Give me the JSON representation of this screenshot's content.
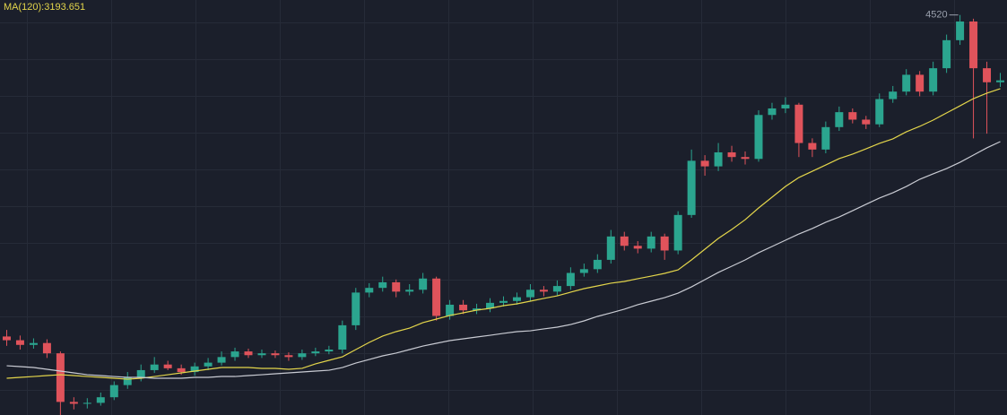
{
  "chart_data": {
    "type": "candlestick",
    "ma_label": "MA(120):3193.651",
    "max_label": 4520,
    "ylim": [
      240,
      4680
    ],
    "up_color": "#2ba58f",
    "down_color": "#e0535b",
    "open": [
      1080,
      1040,
      990,
      1010,
      900,
      380,
      360,
      370,
      430,
      560,
      640,
      720,
      780,
      740,
      700,
      760,
      800,
      860,
      920,
      880,
      900,
      880,
      860,
      900,
      920,
      940,
      1200,
      1550,
      1600,
      1660,
      1560,
      1580,
      1700,
      1300,
      1420,
      1360,
      1380,
      1440,
      1460,
      1500,
      1580,
      1560,
      1620,
      1760,
      1800,
      1900,
      2150,
      2050,
      2020,
      2150,
      2000,
      2380,
      2960,
      2900,
      3050,
      3000,
      2980,
      3450,
      3520,
      3560,
      3150,
      3080,
      3320,
      3480,
      3400,
      3350,
      3620,
      3700,
      3880,
      3700,
      3950,
      4250,
      4450,
      3950,
      3800
    ],
    "high": [
      1150,
      1090,
      1060,
      1050,
      920,
      430,
      420,
      480,
      600,
      700,
      780,
      860,
      820,
      780,
      800,
      850,
      920,
      960,
      950,
      940,
      930,
      910,
      940,
      960,
      980,
      1250,
      1600,
      1650,
      1720,
      1690,
      1640,
      1760,
      1720,
      1470,
      1470,
      1430,
      1490,
      1510,
      1550,
      1640,
      1620,
      1680,
      1820,
      1860,
      1960,
      2220,
      2200,
      2100,
      2200,
      2180,
      2420,
      3080,
      3020,
      3150,
      3120,
      3060,
      3500,
      3580,
      3640,
      3580,
      3200,
      3380,
      3540,
      3520,
      3440,
      3680,
      3760,
      3940,
      3920,
      4020,
      4310,
      4520,
      4480,
      4020,
      3900
    ],
    "low": [
      980,
      940,
      950,
      850,
      240,
      300,
      310,
      340,
      400,
      520,
      600,
      690,
      720,
      670,
      660,
      720,
      770,
      820,
      850,
      850,
      850,
      820,
      830,
      870,
      890,
      900,
      1150,
      1500,
      1560,
      1500,
      1520,
      1540,
      1250,
      1260,
      1320,
      1320,
      1340,
      1400,
      1420,
      1460,
      1510,
      1520,
      1580,
      1720,
      1760,
      1860,
      2000,
      1970,
      1980,
      1900,
      1960,
      2350,
      2800,
      2850,
      2950,
      2920,
      2950,
      3400,
      3470,
      3000,
      3000,
      3040,
      3280,
      3360,
      3300,
      3320,
      3580,
      3660,
      3650,
      3660,
      3900,
      4200,
      3200,
      3250,
      3750
    ],
    "close": [
      1040,
      990,
      1010,
      900,
      380,
      360,
      370,
      430,
      560,
      640,
      720,
      780,
      740,
      700,
      760,
      800,
      860,
      920,
      880,
      900,
      880,
      860,
      900,
      920,
      940,
      1200,
      1550,
      1600,
      1660,
      1560,
      1580,
      1700,
      1300,
      1420,
      1360,
      1380,
      1440,
      1460,
      1500,
      1580,
      1560,
      1620,
      1760,
      1800,
      1900,
      2150,
      2050,
      2020,
      2150,
      2000,
      2380,
      2960,
      2900,
      3050,
      3000,
      2980,
      3450,
      3520,
      3560,
      3150,
      3080,
      3320,
      3480,
      3400,
      3350,
      3620,
      3700,
      3880,
      3700,
      3950,
      4250,
      4450,
      3950,
      3800,
      3820
    ],
    "series": [
      {
        "color": "#e3d54b",
        "values": [
          633,
          643,
          652,
          662,
          671,
          662,
          652,
          643,
          633,
          623,
          633,
          652,
          671,
          691,
          710,
          729,
          748,
          748,
          748,
          739,
          739,
          729,
          739,
          787,
          825,
          863,
          940,
          1017,
          1084,
          1132,
          1170,
          1228,
          1266,
          1305,
          1333,
          1362,
          1381,
          1410,
          1429,
          1458,
          1487,
          1515,
          1554,
          1592,
          1621,
          1650,
          1669,
          1698,
          1726,
          1755,
          1793,
          1899,
          2014,
          2129,
          2225,
          2330,
          2455,
          2570,
          2685,
          2781,
          2848,
          2915,
          2983,
          3031,
          3088,
          3146,
          3194,
          3270,
          3328,
          3395,
          3472,
          3548,
          3625,
          3683,
          3731
        ]
      },
      {
        "color": "#c9cbd3",
        "values": [
          767,
          758,
          748,
          729,
          710,
          691,
          671,
          662,
          652,
          643,
          643,
          633,
          633,
          633,
          643,
          643,
          652,
          652,
          662,
          671,
          681,
          691,
          700,
          710,
          719,
          748,
          796,
          834,
          873,
          902,
          940,
          978,
          1007,
          1036,
          1055,
          1074,
          1093,
          1113,
          1132,
          1141,
          1161,
          1180,
          1208,
          1247,
          1295,
          1333,
          1372,
          1420,
          1458,
          1496,
          1544,
          1611,
          1688,
          1765,
          1832,
          1899,
          1976,
          2043,
          2110,
          2177,
          2235,
          2302,
          2359,
          2426,
          2494,
          2561,
          2618,
          2685,
          2762,
          2820,
          2877,
          2944,
          3021,
          3098,
          3165
        ]
      }
    ]
  }
}
